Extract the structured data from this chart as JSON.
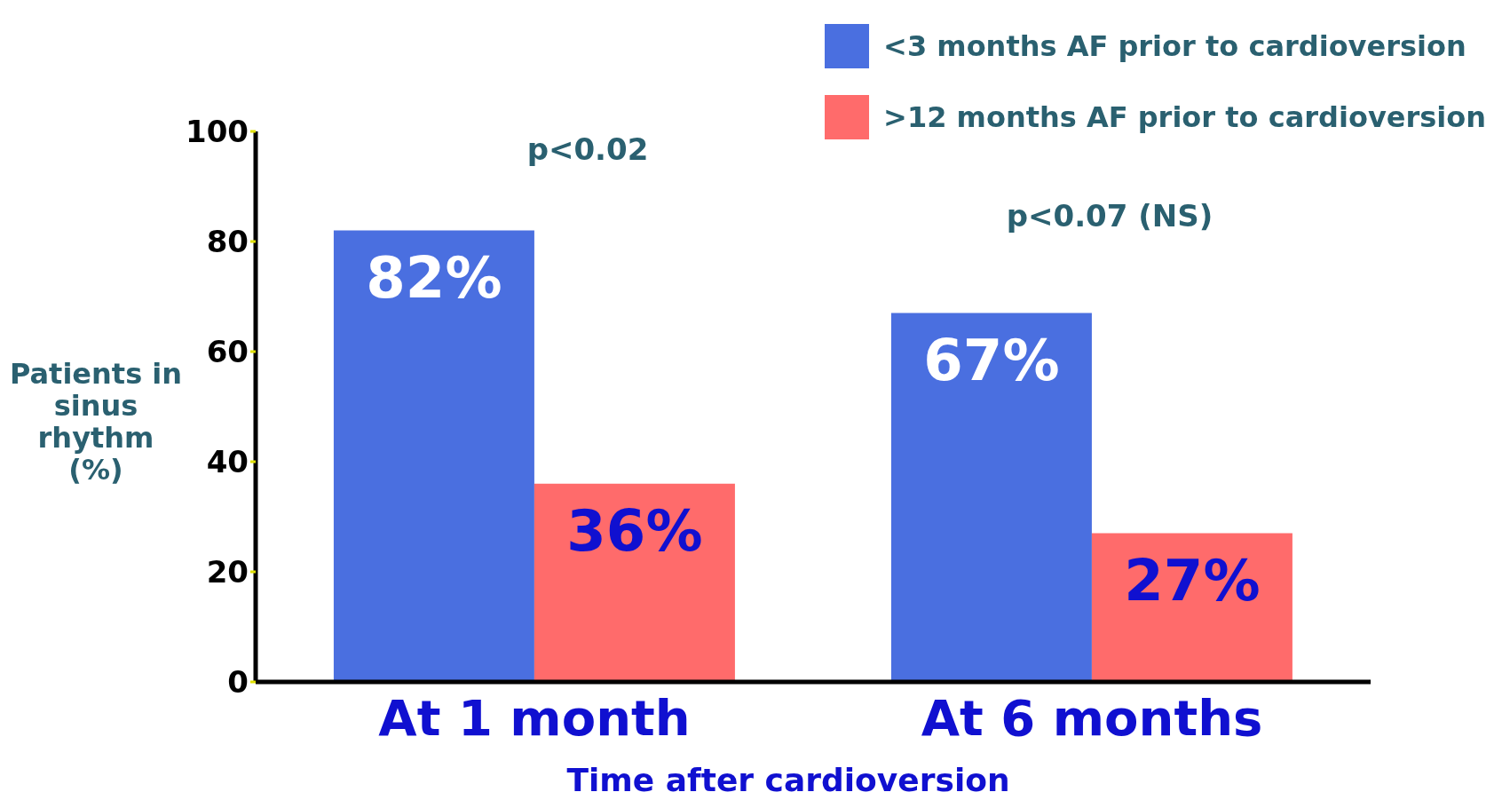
{
  "chart_data": {
    "type": "bar",
    "xlabel": "Time after cardioversion",
    "ylabel": "Patients in sinus rhythm (%)",
    "categories": [
      "At 1 month",
      "At 6 months"
    ],
    "series": [
      {
        "name": "<3 months AF prior to cardioversion",
        "color": "#4a6fe0",
        "values": [
          82,
          67
        ],
        "value_labels": [
          "82%",
          "67%"
        ]
      },
      {
        "name": ">12 months AF prior to cardioversion",
        "color": "#ff6b6b",
        "values": [
          36,
          27
        ],
        "value_labels": [
          "36%",
          "27%"
        ]
      }
    ],
    "ylim": [
      0,
      100
    ],
    "yticks": [
      0,
      20,
      40,
      60,
      80,
      100
    ],
    "legend": "top right",
    "annotations": [
      "p<0.02",
      "p<0.07 (NS)"
    ]
  }
}
